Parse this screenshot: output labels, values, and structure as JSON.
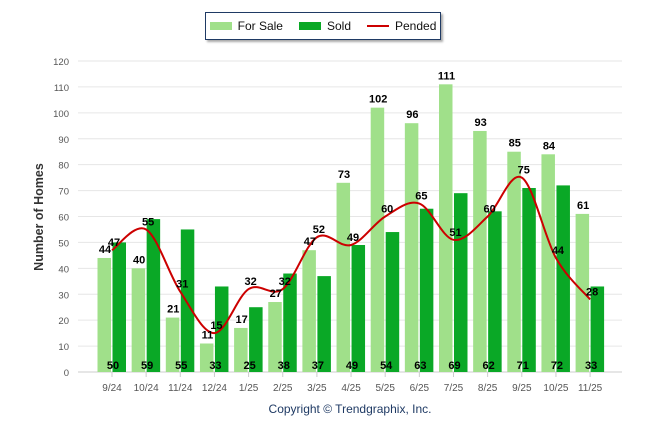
{
  "chart_data": {
    "type": "bar",
    "ylabel": "Number of Homes",
    "ylim": [
      0,
      120
    ],
    "yticks": [
      0,
      10,
      20,
      30,
      40,
      50,
      60,
      70,
      80,
      90,
      100,
      110,
      120
    ],
    "grid": true,
    "legend_position": "top-center",
    "categories": [
      "9/24",
      "10/24",
      "11/24",
      "12/24",
      "1/25",
      "2/25",
      "3/25",
      "4/25",
      "5/25",
      "6/25",
      "7/25",
      "8/25",
      "9/25",
      "10/25",
      "11/25"
    ],
    "series": [
      {
        "name": "For Sale",
        "kind": "bar",
        "color": "#a0e08a",
        "values": [
          44,
          40,
          21,
          11,
          17,
          27,
          47,
          73,
          102,
          96,
          111,
          93,
          85,
          84,
          61
        ]
      },
      {
        "name": "Sold",
        "kind": "bar",
        "color": "#0aa826",
        "values": [
          50,
          59,
          55,
          33,
          25,
          38,
          37,
          49,
          54,
          63,
          69,
          62,
          71,
          72,
          33
        ]
      },
      {
        "name": "Pended",
        "kind": "line",
        "color": "#cc0000",
        "values": [
          47,
          55,
          31,
          15,
          32,
          32,
          52,
          49,
          60,
          65,
          51,
          60,
          75,
          44,
          28
        ]
      }
    ]
  },
  "footer": {
    "copyright": "Copyright © Trendgraphix, Inc."
  }
}
